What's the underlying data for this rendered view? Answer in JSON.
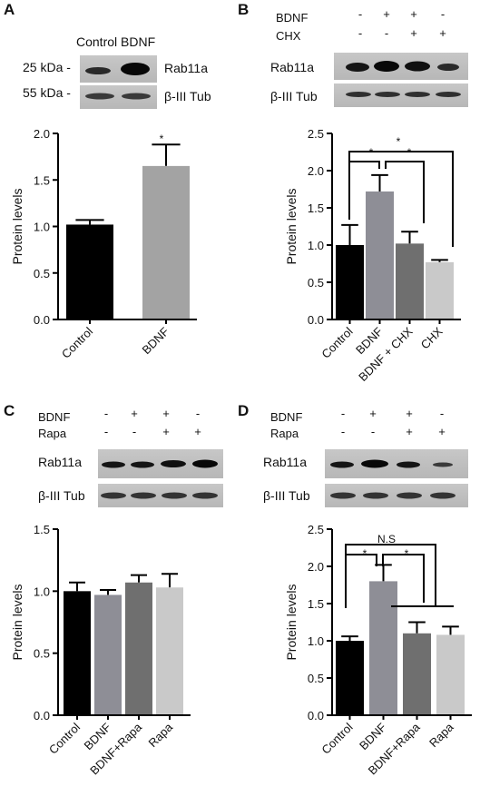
{
  "panels": [
    {
      "label": "A",
      "header_text": "Control BDNF",
      "blots": [
        {
          "mw": "25 kDa -",
          "name": "Rab11a"
        },
        {
          "mw": "55 kDa -",
          "name": "β-III Tub"
        }
      ]
    },
    {
      "label": "B",
      "conditions": [
        {
          "name": "BDNF",
          "marks": [
            "-",
            "+",
            "+",
            "-"
          ]
        },
        {
          "name": "CHX",
          "marks": [
            "-",
            "-",
            "+",
            "+"
          ]
        }
      ],
      "blots": [
        {
          "name": "Rab11a"
        },
        {
          "name": "β-III Tub"
        }
      ],
      "annotations": [
        "*",
        "*",
        "*"
      ]
    },
    {
      "label": "C",
      "conditions": [
        {
          "name": "BDNF",
          "marks": [
            "-",
            "+",
            "+",
            "-"
          ]
        },
        {
          "name": "Rapa",
          "marks": [
            "-",
            "-",
            "+",
            "+"
          ]
        }
      ],
      "blots": [
        {
          "name": "Rab11a"
        },
        {
          "name": "β-III Tub"
        }
      ]
    },
    {
      "label": "D",
      "conditions": [
        {
          "name": "BDNF",
          "marks": [
            "-",
            "+",
            "+",
            "-"
          ]
        },
        {
          "name": "Rapa",
          "marks": [
            "-",
            "-",
            "+",
            "+"
          ]
        }
      ],
      "blots": [
        {
          "name": "Rab11a"
        },
        {
          "name": "β-III Tub"
        }
      ],
      "annotations": [
        "N.S",
        "*",
        "*"
      ]
    }
  ],
  "chart_data": [
    {
      "panel": "A",
      "type": "bar",
      "categories": [
        "Control",
        "BDNF"
      ],
      "values": [
        1.02,
        1.65
      ],
      "errors": [
        0.05,
        0.23
      ],
      "colors": [
        "#000000",
        "#a3a3a3"
      ],
      "ylabel": "Protein levels",
      "ylim": [
        0.0,
        2.0
      ],
      "yticks": [
        "0.0",
        "0.5",
        "1.0",
        "1.5",
        "2.0"
      ],
      "significance": [
        "*"
      ]
    },
    {
      "panel": "B",
      "type": "bar",
      "categories": [
        "Control",
        "BDNF",
        "BDNF + CHX",
        "CHX"
      ],
      "values": [
        1.0,
        1.72,
        1.02,
        0.77
      ],
      "errors": [
        0.27,
        0.22,
        0.16,
        0.03
      ],
      "colors": [
        "#000000",
        "#8e8e96",
        "#6f6f6f",
        "#c9c9c9"
      ],
      "ylabel": "Protein levels",
      "ylim": [
        0.0,
        2.5
      ],
      "yticks": [
        "0.0",
        "0.5",
        "1.0",
        "1.5",
        "2.0",
        "2.5"
      ]
    },
    {
      "panel": "C",
      "type": "bar",
      "categories": [
        "Control",
        "BDNF",
        "BDNF+Rapa",
        "Rapa"
      ],
      "values": [
        1.0,
        0.97,
        1.07,
        1.03
      ],
      "errors": [
        0.07,
        0.04,
        0.06,
        0.11
      ],
      "colors": [
        "#000000",
        "#8e8e96",
        "#6f6f6f",
        "#c9c9c9"
      ],
      "ylabel": "Protein levels",
      "ylim": [
        0.0,
        1.5
      ],
      "yticks": [
        "0.0",
        "0.5",
        "1.0",
        "1.5"
      ]
    },
    {
      "panel": "D",
      "type": "bar",
      "categories": [
        "Control",
        "BDNF",
        "BDNF+Rapa",
        "Rapa"
      ],
      "values": [
        1.0,
        1.8,
        1.1,
        1.08
      ],
      "errors": [
        0.06,
        0.22,
        0.15,
        0.11
      ],
      "colors": [
        "#000000",
        "#8e8e96",
        "#6f6f6f",
        "#c9c9c9"
      ],
      "ylabel": "Protein levels",
      "ylim": [
        0.0,
        2.5
      ],
      "yticks": [
        "0.0",
        "0.5",
        "1.0",
        "1.5",
        "2.0",
        "2.5"
      ]
    }
  ]
}
